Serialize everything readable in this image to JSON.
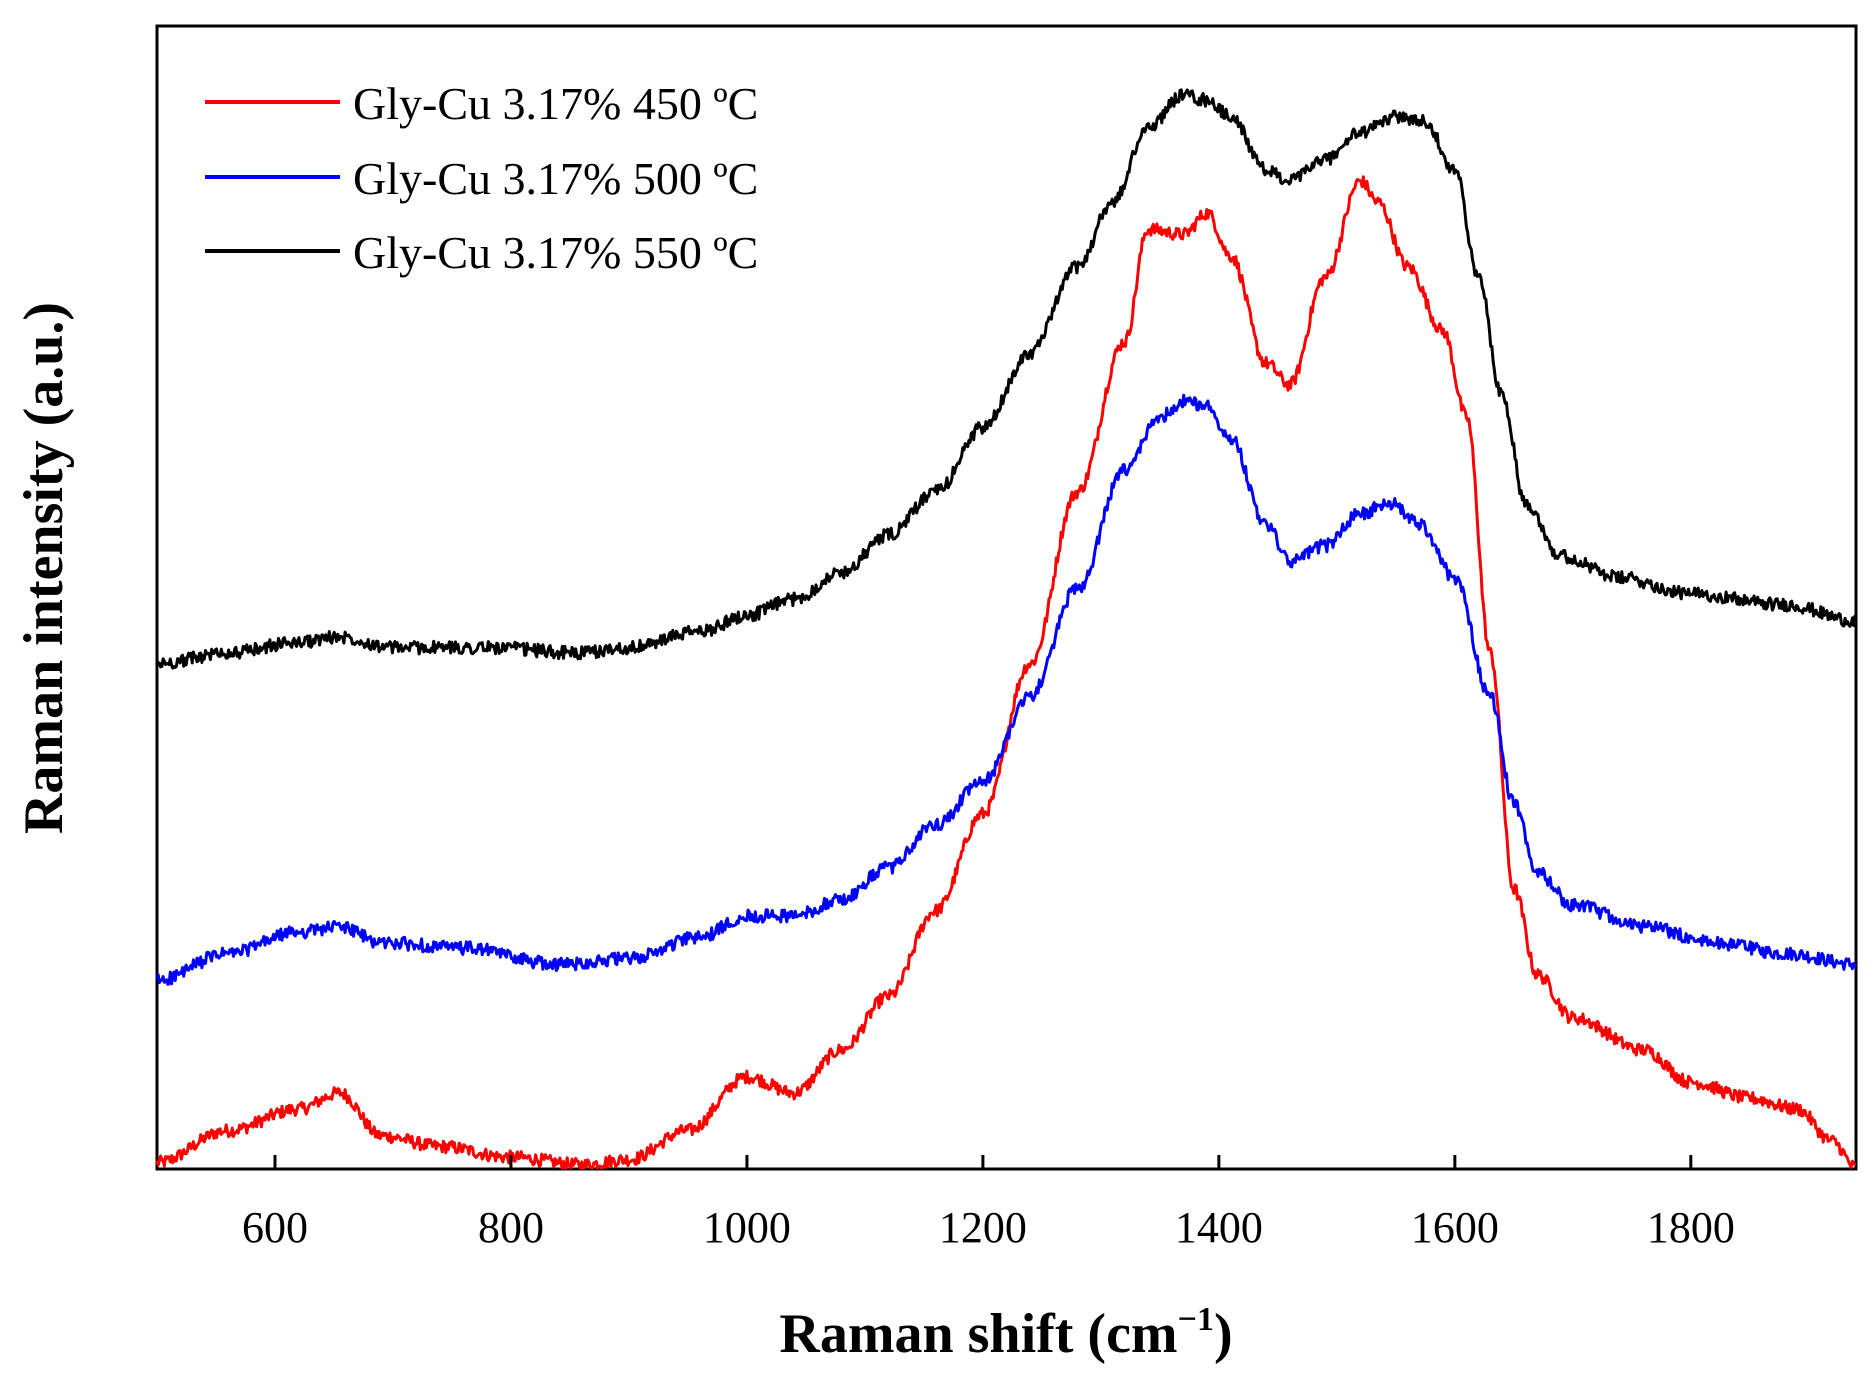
{
  "chart_data": {
    "type": "line",
    "title": "",
    "xlabel": "Raman shift (cm",
    "xlabel_sup": "−1",
    "xlabel_close": ")",
    "ylabel": "Raman intensity (a.u.)",
    "xlim": [
      500,
      1940
    ],
    "ylim": [
      0,
      1
    ],
    "x_ticks": [
      600,
      800,
      1000,
      1200,
      1400,
      1600,
      1800
    ],
    "x_tick_labels": [
      "600",
      "800",
      "1000",
      "1200",
      "1400",
      "1600",
      "1800"
    ],
    "y_ticks_shown": false,
    "legend_position": "top-left",
    "series": [
      {
        "name": "Gly-Cu 3.17% 450 ºC",
        "color": "#ff0000",
        "x": [
          500,
          560,
          620,
          655,
          690,
          740,
          800,
          860,
          900,
          950,
          1000,
          1040,
          1080,
          1120,
          1160,
          1200,
          1240,
          1280,
          1320,
          1340,
          1370,
          1390,
          1410,
          1440,
          1460,
          1490,
          1520,
          1535,
          1560,
          1590,
          1610,
          1630,
          1650,
          1670,
          1700,
          1760,
          1800,
          1850,
          1890,
          1920,
          1940
        ],
        "y": [
          0.005,
          0.035,
          0.055,
          0.07,
          0.03,
          0.02,
          0.01,
          0.003,
          0.008,
          0.035,
          0.085,
          0.07,
          0.11,
          0.16,
          0.24,
          0.33,
          0.47,
          0.63,
          0.77,
          0.875,
          0.87,
          0.89,
          0.85,
          0.75,
          0.73,
          0.83,
          0.92,
          0.9,
          0.84,
          0.78,
          0.7,
          0.48,
          0.26,
          0.18,
          0.14,
          0.11,
          0.08,
          0.065,
          0.055,
          0.025,
          0.0
        ]
      },
      {
        "name": "Gly-Cu 3.17% 500 ºC",
        "color": "#0000ff",
        "x": [
          500,
          560,
          620,
          655,
          690,
          760,
          840,
          900,
          960,
          1000,
          1040,
          1080,
          1120,
          1160,
          1200,
          1240,
          1280,
          1320,
          1350,
          1370,
          1390,
          1410,
          1440,
          1460,
          1490,
          1520,
          1545,
          1570,
          1600,
          1630,
          1650,
          1670,
          1700,
          1760,
          1820,
          1880,
          1940
        ],
        "y": [
          0.175,
          0.2,
          0.22,
          0.225,
          0.21,
          0.205,
          0.19,
          0.195,
          0.215,
          0.235,
          0.235,
          0.25,
          0.28,
          0.32,
          0.36,
          0.44,
          0.54,
          0.65,
          0.7,
          0.715,
          0.71,
          0.68,
          0.6,
          0.565,
          0.58,
          0.61,
          0.62,
          0.6,
          0.55,
          0.44,
          0.34,
          0.275,
          0.245,
          0.225,
          0.21,
          0.2,
          0.19
        ]
      },
      {
        "name": "Gly-Cu 3.17% 550 ºC",
        "color": "#000000",
        "x": [
          500,
          560,
          620,
          655,
          700,
          780,
          860,
          900,
          960,
          1000,
          1040,
          1080,
          1120,
          1160,
          1200,
          1240,
          1280,
          1310,
          1340,
          1370,
          1390,
          1410,
          1440,
          1460,
          1490,
          1520,
          1550,
          1575,
          1600,
          1620,
          1640,
          1660,
          1690,
          1740,
          1800,
          1880,
          1940
        ],
        "y": [
          0.47,
          0.48,
          0.49,
          0.495,
          0.485,
          0.485,
          0.48,
          0.485,
          0.5,
          0.515,
          0.53,
          0.555,
          0.59,
          0.63,
          0.69,
          0.76,
          0.84,
          0.9,
          0.97,
          1.0,
          0.995,
          0.98,
          0.93,
          0.92,
          0.94,
          0.965,
          0.98,
          0.975,
          0.93,
          0.83,
          0.72,
          0.62,
          0.57,
          0.55,
          0.535,
          0.525,
          0.51
        ]
      }
    ]
  }
}
